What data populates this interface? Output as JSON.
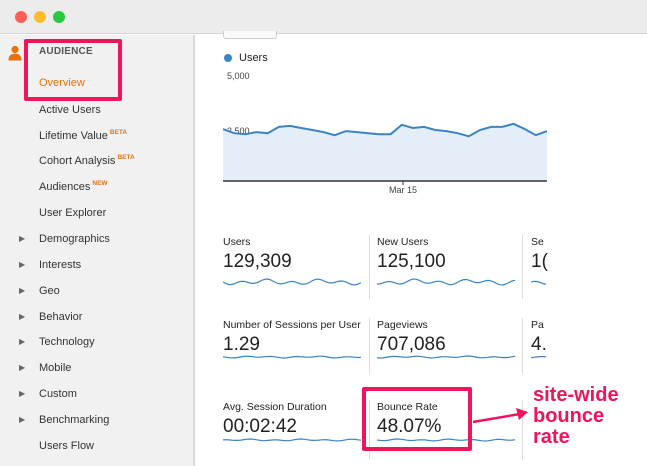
{
  "window": {
    "controls": [
      "close",
      "minimize",
      "zoom"
    ]
  },
  "sidebar": {
    "section_title": "AUDIENCE",
    "active_item": "Overview",
    "items": [
      {
        "label": "Active Users",
        "badge": ""
      },
      {
        "label": "Lifetime Value",
        "badge": "BETA"
      },
      {
        "label": "Cohort Analysis",
        "badge": "BETA"
      },
      {
        "label": "Audiences",
        "badge": "NEW"
      },
      {
        "label": "User Explorer",
        "badge": ""
      }
    ],
    "groups": [
      "Demographics",
      "Interests",
      "Geo",
      "Behavior",
      "Technology",
      "Mobile",
      "Custom",
      "Benchmarking",
      "Users Flow"
    ]
  },
  "chart": {
    "legend": "Users",
    "y_tick_top": "5,000",
    "y_tick_mid": "2,500",
    "x_tick": "Mar 15"
  },
  "chart_data": {
    "type": "area",
    "title": "",
    "series": [
      {
        "name": "Users",
        "values": [
          2500,
          2300,
          2250,
          2350,
          2300,
          2600,
          2650,
          2550,
          2450,
          2350,
          2200,
          2400,
          2350,
          2300,
          2250,
          2250,
          2700,
          2550,
          2600,
          2450,
          2400,
          2300,
          2150,
          2450,
          2600,
          2600,
          2750,
          2500,
          2200,
          2400
        ]
      }
    ],
    "xtick": "Mar 15",
    "ylim": [
      0,
      5000
    ],
    "yticks": [
      "5,000",
      "2,500"
    ],
    "color": "#3b84c4",
    "fill": "#e3eef8"
  },
  "metrics": [
    {
      "name": "Users",
      "value": "129,309"
    },
    {
      "name": "New Users",
      "value": "125,100"
    },
    {
      "name": "Se",
      "value": "1("
    },
    {
      "name": "Number of Sessions per User",
      "value": "1.29"
    },
    {
      "name": "Pageviews",
      "value": "707,086"
    },
    {
      "name": "Pa",
      "value": "4."
    },
    {
      "name": "Avg. Session Duration",
      "value": "00:02:42"
    },
    {
      "name": "Bounce Rate",
      "value": "48.07%"
    }
  ],
  "annotation": {
    "line1": "site-wide",
    "line2": "bounce",
    "line3": "rate",
    "color": "#f0145a"
  },
  "colors": {
    "accent": "#e8710a",
    "highlight": "#f0145a",
    "series": "#3b84c4"
  }
}
